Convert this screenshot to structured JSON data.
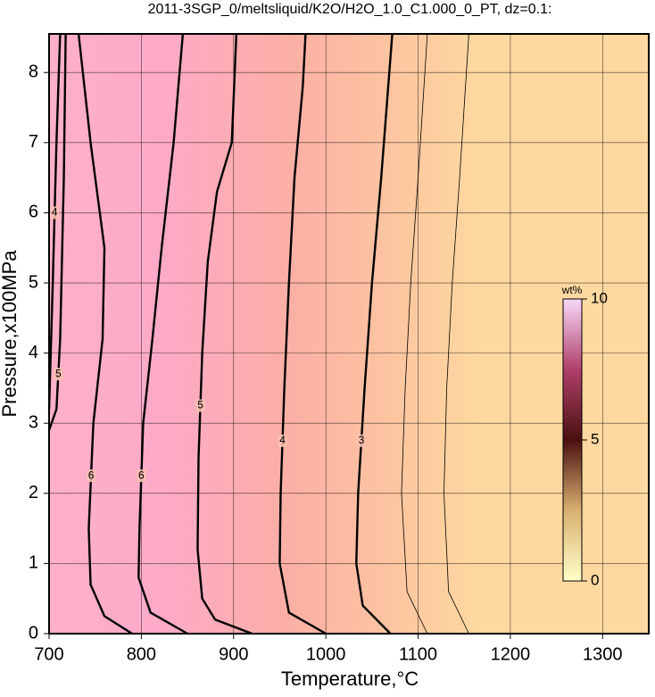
{
  "chart_data": {
    "type": "contour",
    "title": "2011-3SGP_0/meltsliquid/K2O/H2O_1.0_C1.000_0_PT, dz=0.1:",
    "x_label": "Temperature,°C",
    "y_label": "Pressure,x100MPa",
    "xlim": [
      700,
      1350
    ],
    "xticks": [
      700,
      800,
      900,
      1000,
      1100,
      1200,
      1300
    ],
    "ylim": [
      0,
      8.55
    ],
    "yticks": [
      0,
      1,
      2,
      3,
      4,
      5,
      6,
      7,
      8
    ],
    "grid": true,
    "contours": [
      {
        "level": 4,
        "bold": true,
        "x": [
          712,
          708,
          704,
          700
        ],
        "y": [
          8.55,
          7,
          5,
          3.2
        ]
      },
      {
        "level": 5,
        "bold": true,
        "x": [
          718,
          716,
          712,
          708,
          700
        ],
        "y": [
          8.55,
          6.5,
          4.2,
          3.2,
          2.9
        ]
      },
      {
        "level": 6,
        "bold": true,
        "x": [
          732,
          745,
          760,
          758,
          748,
          743,
          745,
          760,
          790
        ],
        "y": [
          8.55,
          7,
          5.5,
          4.2,
          3,
          1.5,
          0.7,
          0.25,
          0
        ]
      },
      {
        "level": 6,
        "bold": true,
        "x": [
          845,
          835,
          822,
          812,
          802,
          798,
          797,
          810,
          850
        ],
        "y": [
          8.55,
          7,
          5.5,
          4.2,
          3,
          1.5,
          0.8,
          0.3,
          0
        ]
      },
      {
        "level": 5,
        "bold": true,
        "x": [
          903,
          898,
          882,
          872,
          866,
          862,
          861,
          866,
          880,
          920
        ],
        "y": [
          8.55,
          7,
          6.3,
          5.3,
          4,
          2.5,
          1.2,
          0.5,
          0.2,
          0
        ]
      },
      {
        "level": 4,
        "bold": true,
        "x": [
          978,
          975,
          966,
          960,
          955,
          951,
          950,
          960,
          1000
        ],
        "y": [
          8.55,
          7.8,
          6.5,
          5,
          3.5,
          2,
          1,
          0.3,
          0
        ]
      },
      {
        "level": 3,
        "bold": true,
        "x": [
          1072,
          1060,
          1050,
          1042,
          1035,
          1033,
          1040,
          1070
        ],
        "y": [
          8.55,
          6.5,
          5,
          3.5,
          2,
          1,
          0.4,
          0
        ]
      },
      {
        "level": 2,
        "bold": false,
        "x": [
          1110,
          1100,
          1092,
          1086,
          1082,
          1088,
          1110
        ],
        "y": [
          8.55,
          6.5,
          5,
          3.5,
          2,
          0.6,
          0
        ]
      },
      {
        "level": 1,
        "bold": false,
        "x": [
          1155,
          1145,
          1137,
          1131,
          1128,
          1133,
          1155
        ],
        "y": [
          8.55,
          6.5,
          5,
          3.5,
          2,
          0.6,
          0
        ]
      }
    ],
    "colorbar": {
      "label": "wt%",
      "lim": [
        0,
        10
      ],
      "ticks": [
        0,
        5,
        10
      ]
    }
  }
}
